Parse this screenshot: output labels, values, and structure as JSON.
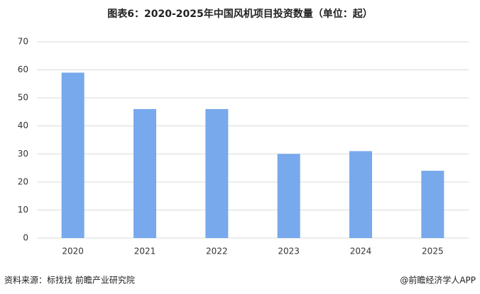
{
  "chart_data": {
    "type": "bar",
    "title": "图表6：2020-2025年中国风机项目投资数量（单位：起）",
    "categories": [
      "2020",
      "2021",
      "2022",
      "2023",
      "2024",
      "2025"
    ],
    "values": [
      59,
      46,
      46,
      30,
      31,
      24
    ],
    "color": "#77a9ec",
    "ylim": [
      0,
      70
    ],
    "yticks": [
      0,
      10,
      20,
      30,
      40,
      50,
      60,
      70
    ],
    "grid": true,
    "source": "资料来源：标找找 前瞻产业研究院",
    "credit": "@前瞻经济学人APP"
  }
}
